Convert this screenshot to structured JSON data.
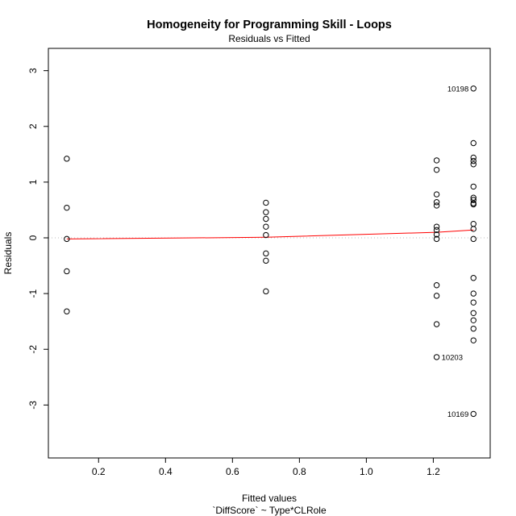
{
  "chart_data": {
    "type": "scatter",
    "title": "Homogeneity for Programming Skill - Loops",
    "subtitle": "Residuals vs Fitted",
    "xlabel": "Fitted values",
    "xlabel2": "`DiffScore` ~ Type*CLRole",
    "ylabel": "Residuals",
    "xlim": [
      0.05,
      1.37
    ],
    "ylim": [
      -3.95,
      3.4
    ],
    "xticks": [
      0.2,
      0.4,
      0.6,
      0.8,
      1.0,
      1.2
    ],
    "xtick_labels": [
      "0.2",
      "0.4",
      "0.6",
      "0.8",
      "1.0",
      "1.2"
    ],
    "yticks": [
      -3,
      -2,
      -1,
      0,
      1,
      2,
      3
    ],
    "ytick_labels": [
      "-3",
      "-2",
      "-1",
      "0",
      "1",
      "2",
      "3"
    ],
    "zero_line": 0,
    "colors": {
      "points": "#000000",
      "smoother": "#ff0000",
      "zero_line": "#bbbbbb"
    },
    "points": [
      {
        "x": 0.105,
        "y": 1.42
      },
      {
        "x": 0.105,
        "y": 0.54
      },
      {
        "x": 0.105,
        "y": -0.02
      },
      {
        "x": 0.105,
        "y": -0.6
      },
      {
        "x": 0.105,
        "y": -1.32
      },
      {
        "x": 0.7,
        "y": 0.63
      },
      {
        "x": 0.7,
        "y": 0.46
      },
      {
        "x": 0.7,
        "y": 0.34
      },
      {
        "x": 0.7,
        "y": 0.2
      },
      {
        "x": 0.7,
        "y": 0.05
      },
      {
        "x": 0.7,
        "y": -0.28
      },
      {
        "x": 0.7,
        "y": -0.41
      },
      {
        "x": 0.7,
        "y": -0.96
      },
      {
        "x": 1.21,
        "y": 1.39
      },
      {
        "x": 1.21,
        "y": 1.22
      },
      {
        "x": 1.21,
        "y": 0.78
      },
      {
        "x": 1.21,
        "y": 0.64
      },
      {
        "x": 1.21,
        "y": 0.58
      },
      {
        "x": 1.21,
        "y": 0.2
      },
      {
        "x": 1.21,
        "y": 0.14
      },
      {
        "x": 1.21,
        "y": 0.06
      },
      {
        "x": 1.21,
        "y": -0.02
      },
      {
        "x": 1.21,
        "y": -0.85
      },
      {
        "x": 1.21,
        "y": -1.04
      },
      {
        "x": 1.21,
        "y": -1.55
      },
      {
        "x": 1.21,
        "y": -2.14
      },
      {
        "x": 1.32,
        "y": 2.68
      },
      {
        "x": 1.32,
        "y": 1.7
      },
      {
        "x": 1.32,
        "y": 1.44
      },
      {
        "x": 1.32,
        "y": 1.38
      },
      {
        "x": 1.32,
        "y": 1.32
      },
      {
        "x": 1.32,
        "y": 0.92
      },
      {
        "x": 1.32,
        "y": 0.72
      },
      {
        "x": 1.32,
        "y": 0.68
      },
      {
        "x": 1.32,
        "y": 0.62
      },
      {
        "x": 1.32,
        "y": 0.6
      },
      {
        "x": 1.32,
        "y": 0.25
      },
      {
        "x": 1.32,
        "y": 0.16
      },
      {
        "x": 1.32,
        "y": -0.02
      },
      {
        "x": 1.32,
        "y": -0.72
      },
      {
        "x": 1.32,
        "y": -1.0
      },
      {
        "x": 1.32,
        "y": -1.16
      },
      {
        "x": 1.32,
        "y": -1.35
      },
      {
        "x": 1.32,
        "y": -1.48
      },
      {
        "x": 1.32,
        "y": -1.63
      },
      {
        "x": 1.32,
        "y": -1.84
      },
      {
        "x": 1.32,
        "y": -3.16
      }
    ],
    "smoother": [
      {
        "x": 0.105,
        "y": -0.02
      },
      {
        "x": 0.7,
        "y": 0.01
      },
      {
        "x": 1.21,
        "y": 0.1
      },
      {
        "x": 1.32,
        "y": 0.14
      }
    ],
    "annotations": [
      {
        "text": "10198",
        "x": 1.32,
        "y": 2.68,
        "side": "left"
      },
      {
        "text": "10203",
        "x": 1.21,
        "y": -2.14,
        "side": "right"
      },
      {
        "text": "10169",
        "x": 1.32,
        "y": -3.16,
        "side": "left"
      }
    ]
  }
}
